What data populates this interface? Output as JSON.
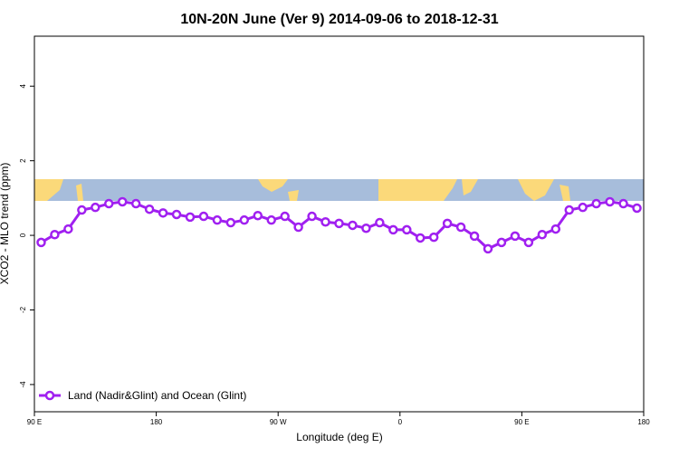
{
  "chart_data": {
    "type": "line",
    "title": "10N-20N June (Ver 9)   2014-09-06 to 2018-12-31",
    "x_label": "Longitude (deg E)",
    "y_label": "XCO2 - MLO trend (ppm)",
    "x": [
      95,
      105,
      115,
      125,
      135,
      145,
      155,
      165,
      175,
      185,
      195,
      205,
      215,
      225,
      235,
      245,
      255,
      265,
      275,
      285,
      295,
      305,
      315,
      325,
      335,
      345,
      355,
      365,
      375,
      385,
      395,
      405,
      415,
      425,
      435,
      445,
      455,
      465,
      475,
      485,
      495,
      505,
      515,
      525,
      535
    ],
    "series": [
      {
        "name": "Land (Nadir&Glint) and Ocean (Glint)",
        "color": "#a020f0",
        "values": [
          -0.19,
          0.02,
          0.17,
          0.68,
          0.75,
          0.85,
          0.9,
          0.85,
          0.7,
          0.6,
          0.56,
          0.49,
          0.51,
          0.41,
          0.34,
          0.41,
          0.53,
          0.41,
          0.51,
          0.22,
          0.51,
          0.36,
          0.32,
          0.27,
          0.19,
          0.34,
          0.15,
          0.15,
          -0.07,
          -0.05,
          0.32,
          0.22,
          -0.02,
          -0.36,
          -0.19,
          -0.02,
          -0.19,
          0.02,
          0.17,
          0.68,
          0.75,
          0.85,
          0.9,
          0.85,
          0.73
        ]
      }
    ],
    "xlim": [
      90,
      540
    ],
    "xticks": [
      {
        "value": 90,
        "label": "90 E"
      },
      180,
      {
        "value": 270,
        "label": "90 W"
      },
      {
        "value": 360,
        "label": "0"
      },
      {
        "value": 450,
        "label": "90 E"
      },
      {
        "value": 540,
        "label": "180"
      }
    ],
    "ylim": [
      -4.73,
      5.34
    ],
    "yticks": [
      -4,
      -2,
      0,
      2,
      4
    ],
    "legend": "bottom-left"
  }
}
